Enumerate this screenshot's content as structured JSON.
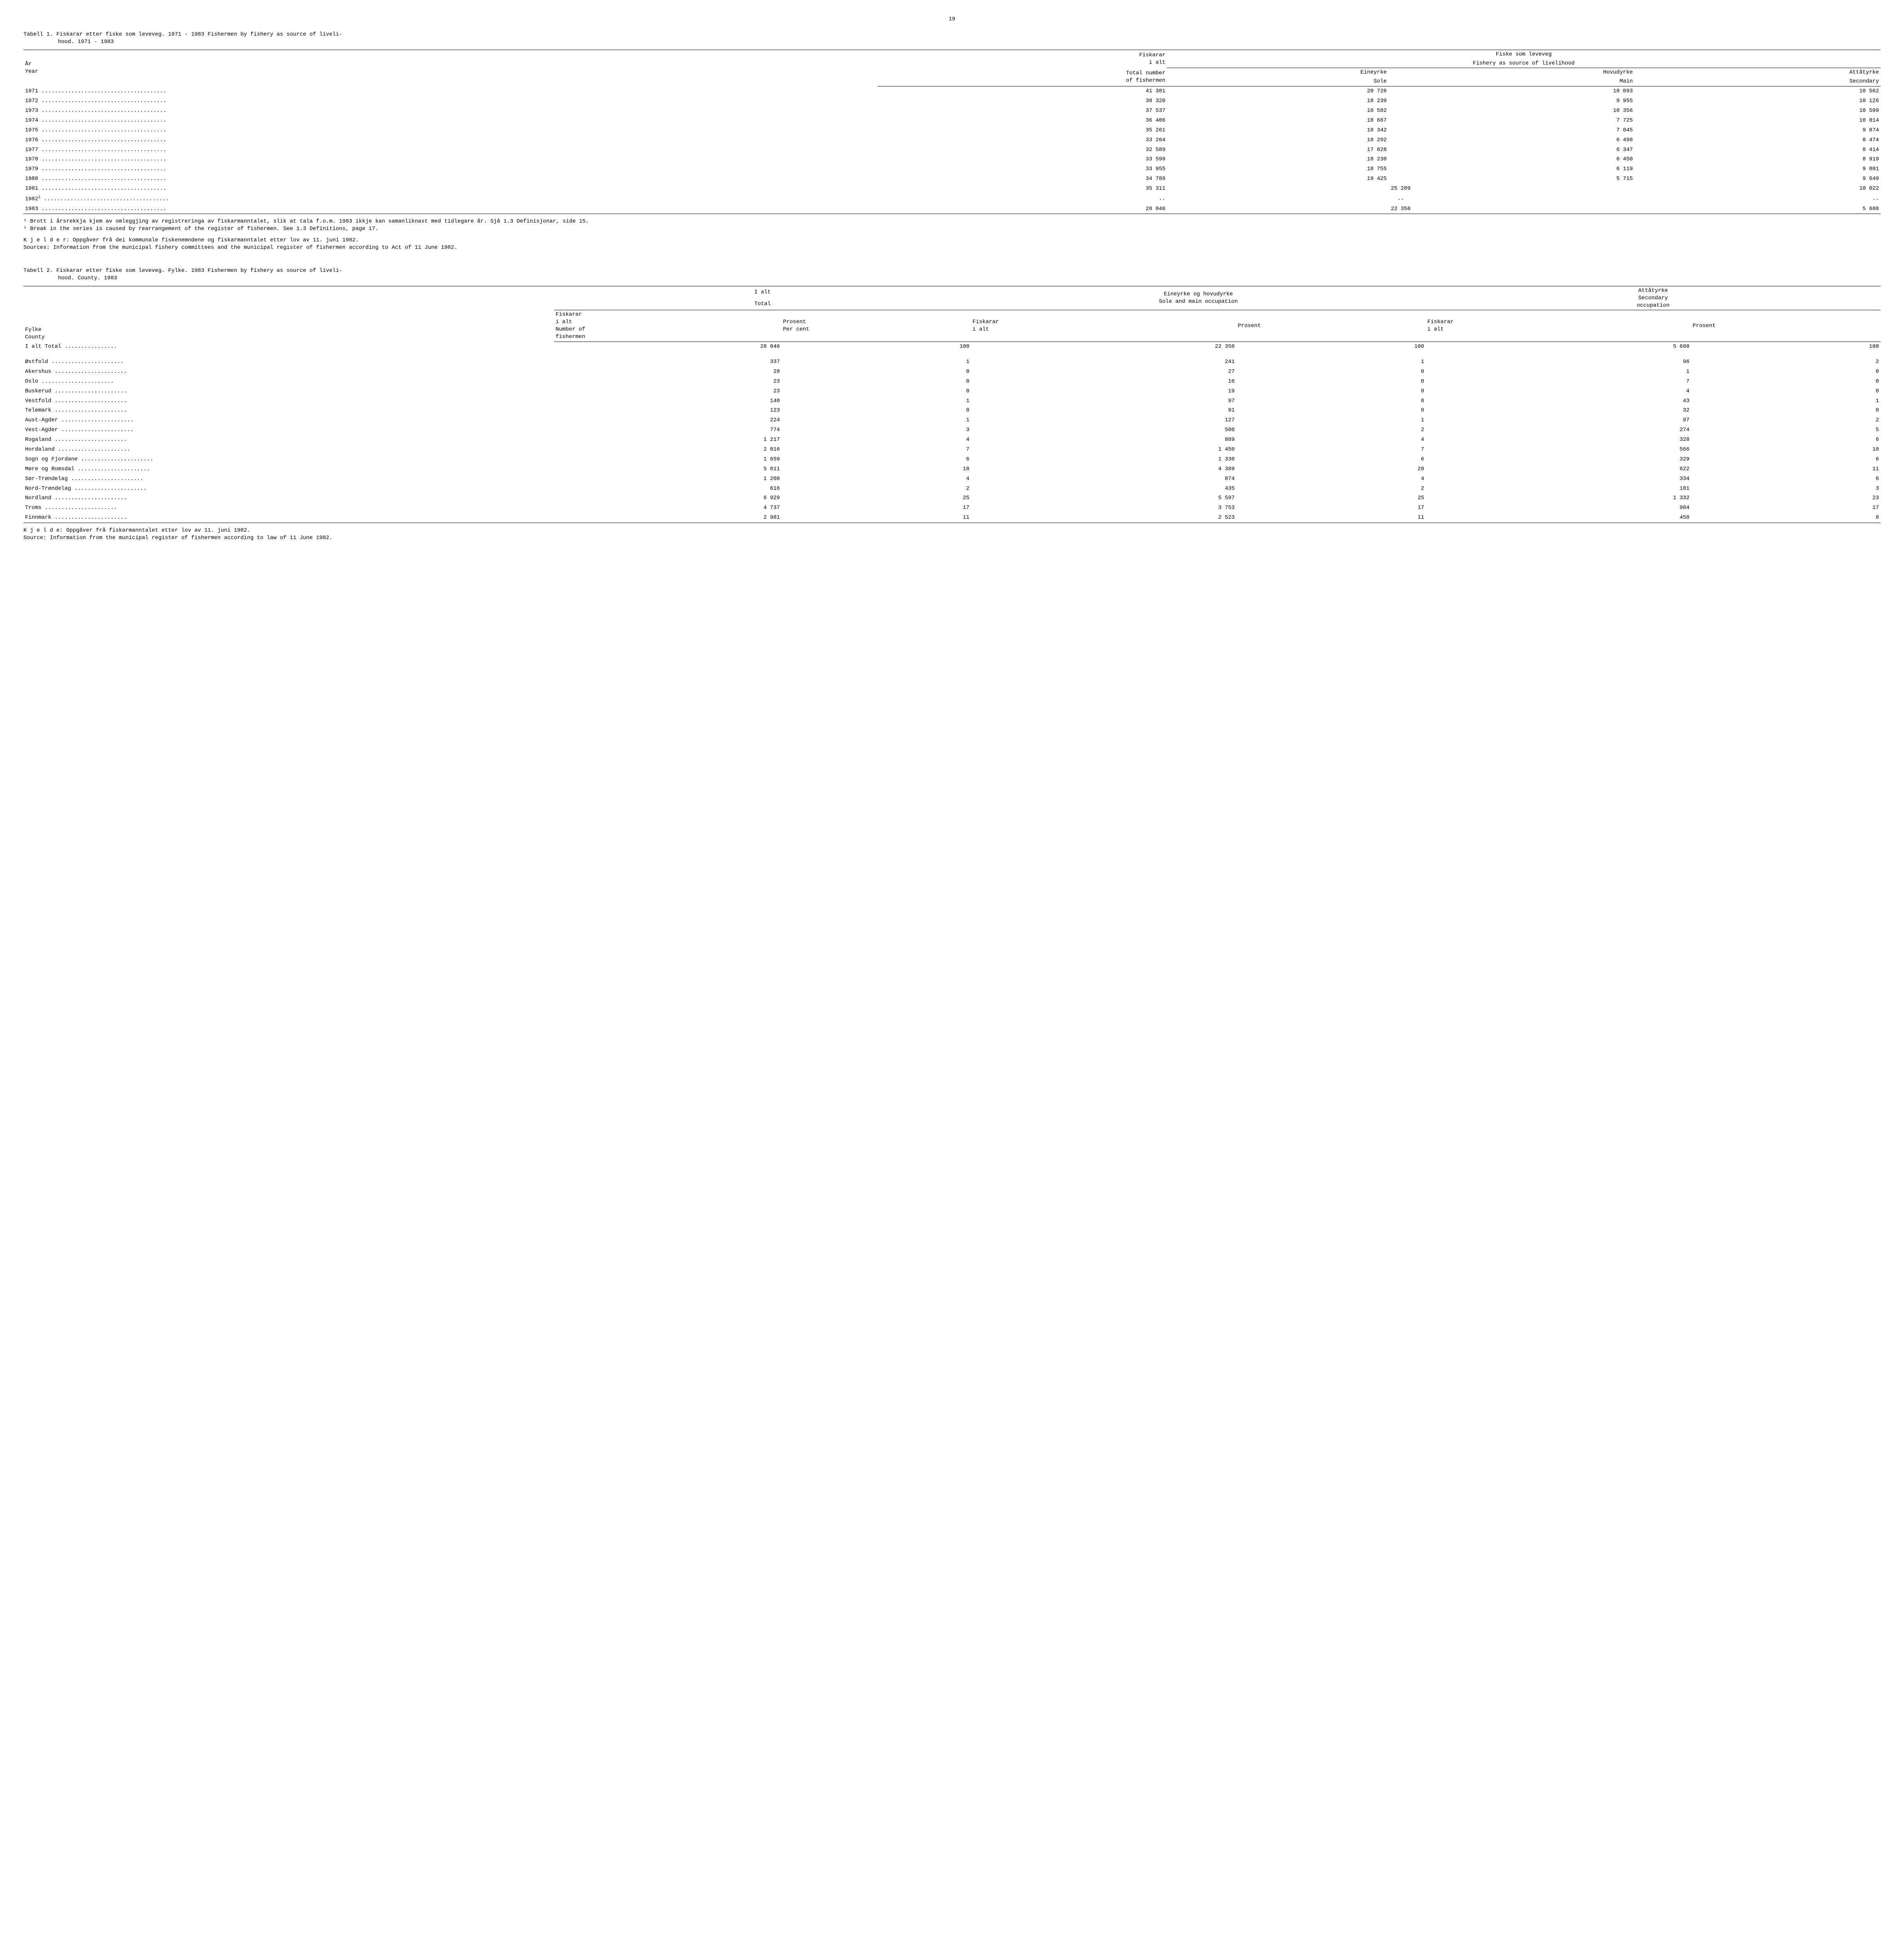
{
  "page_number": "19",
  "table1": {
    "title_line1": "Tabell 1.  Fiskarar etter fiske som leveveg.  1971 - 1983   Fishermen by fishery as source of liveli-",
    "title_line2": "hood.  1971 - 1983",
    "col_year_no": "År",
    "col_year_en": "Year",
    "col_total_no": "Fiskarar",
    "col_total_no2": "i alt",
    "col_total_en": "Total number",
    "col_total_en2": "of fishermen",
    "col_group_no": "Fiske som leveveg",
    "col_group_en": "Fishery as source of livelihood",
    "col_sole_no": "Eineyrke",
    "col_sole_en": "Sole",
    "col_main_no": "Hovudyrke",
    "col_main_en": "Main",
    "col_sec_no": "Attåtyrke",
    "col_sec_en": "Secondary",
    "rows": [
      {
        "y": "1971",
        "t": "41 381",
        "s": "20 726",
        "m": "10 093",
        "sc": "10 562"
      },
      {
        "y": "1972",
        "t": "38 320",
        "s": "18 239",
        "m": "9 955",
        "sc": "10 126"
      },
      {
        "y": "1973",
        "t": "37 537",
        "s": "16 582",
        "m": "10 356",
        "sc": "10 599"
      },
      {
        "y": "1974",
        "t": "36 406",
        "s": "18 667",
        "m": "7 725",
        "sc": "10 014"
      },
      {
        "y": "1975",
        "t": "35 261",
        "s": "18 342",
        "m": "7 045",
        "sc": "9 874"
      },
      {
        "y": "1976",
        "t": "33 264",
        "s": "18 292",
        "m": "6 498",
        "sc": "8 474"
      },
      {
        "y": "1977",
        "t": "32 589",
        "s": "17 828",
        "m": "6 347",
        "sc": "8 414"
      },
      {
        "y": "1978",
        "t": "33 599",
        "s": "18 230",
        "m": "6 450",
        "sc": "8 919"
      },
      {
        "y": "1979",
        "t": "33 955",
        "s": "18 755",
        "m": "6 119",
        "sc": "9 081"
      },
      {
        "y": "1980",
        "t": "34 789",
        "s": "19 425",
        "m": "5 715",
        "sc": "9 649"
      }
    ],
    "row_1981": {
      "y": "1981",
      "t": "35 311",
      "sm": "25 289",
      "sc": "10 022"
    },
    "row_1982": {
      "y": "1982",
      "sup": "1",
      "t": "..",
      "sm": "..",
      "sc": ".."
    },
    "row_1983": {
      "y": "1983",
      "t": "28 046",
      "sm": "22 358",
      "sc": "5 688"
    },
    "footnote1_no": "¹ Brott i årsrekkja kjem av omleggjing av registreringa av fiskarmanntalet, slik at tala f.o.m. 1983 ikkje kan samanliknast med tidlegare år.  Sjå 1.3 Definisjonar, side 15.",
    "footnote1_en": "¹ Break in the series is caused by rearrangement of the register of fishermen.  See 1.3 Definitions, page 17.",
    "source_no": "K j e l d e r: Oppgåver frå dei kommunale fiskenemndene og fiskarmanntalet etter lov av 11. juni 1982.",
    "source_en": "Sources: Information from the municipal fishery committees and the municipal register of fishermen according to Act of 11 June 1982."
  },
  "table2": {
    "title_line1": "Tabell 2.  Fiskarar etter fiske som leveveg.  Fylke.  1983   Fishermen by fishery as source of liveli-",
    "title_line2": "hood.  County.  1983",
    "col_county_no": "Fylke",
    "col_county_en": "County",
    "col_total_no": "I alt",
    "col_total_en": "Total",
    "col_fish_no": "Fiskarar",
    "col_fish_no2": "i alt",
    "col_fish_en": "Number of",
    "col_fish_en2": "fishermen",
    "col_pct_no": "Prosent",
    "col_pct_en": "Per cent",
    "col_solemain_no": "Eineyrke og hovudyrke",
    "col_solemain_en": "Sole and main occupation",
    "col_sec_no": "Attåtyrke",
    "col_sec_en1": "Secondary",
    "col_sec_en2": "occupation",
    "col_fish2_no": "Fiskarar",
    "col_fish2_no2": "i alt",
    "col_pct2": "Prosent",
    "total_row": {
      "label": "I alt   Total",
      "n1": "28 046",
      "p1": "100",
      "n2": "22 358",
      "p2": "100",
      "n3": "5 688",
      "p3": "100"
    },
    "rows": [
      {
        "c": "Østfold",
        "n1": "337",
        "p1": "1",
        "n2": "241",
        "p2": "1",
        "n3": "96",
        "p3": "2"
      },
      {
        "c": "Akershus",
        "n1": "28",
        "p1": "0",
        "n2": "27",
        "p2": "0",
        "n3": "1",
        "p3": "0"
      },
      {
        "c": "Oslo",
        "n1": "23",
        "p1": "0",
        "n2": "16",
        "p2": "0",
        "n3": "7",
        "p3": "0"
      },
      {
        "c": "Buskerud",
        "n1": "23",
        "p1": "0",
        "n2": "19",
        "p2": "0",
        "n3": "4",
        "p3": "0"
      },
      {
        "c": "Vestfold",
        "n1": "140",
        "p1": "1",
        "n2": "97",
        "p2": "0",
        "n3": "43",
        "p3": "1"
      },
      {
        "c": "Telemark",
        "n1": "123",
        "p1": "0",
        "n2": "91",
        "p2": "0",
        "n3": "32",
        "p3": "0"
      },
      {
        "c": "Aust-Agder",
        "n1": "224",
        "p1": "1",
        "n2": "127",
        "p2": "1",
        "n3": "97",
        "p3": "2"
      },
      {
        "c": "Vest-Agder",
        "n1": "774",
        "p1": "3",
        "n2": "500",
        "p2": "2",
        "n3": "274",
        "p3": "5"
      },
      {
        "c": "Rogaland",
        "n1": "1 217",
        "p1": "4",
        "n2": "889",
        "p2": "4",
        "n3": "328",
        "p3": "6"
      },
      {
        "c": "Hordaland",
        "n1": "2 016",
        "p1": "7",
        "n2": "1 450",
        "p2": "7",
        "n3": "566",
        "p3": "10"
      },
      {
        "c": "Sogn og Fjordane",
        "n1": "1 659",
        "p1": "6",
        "n2": "1 330",
        "p2": "6",
        "n3": "329",
        "p3": "6"
      },
      {
        "c": "Møre og Romsdal",
        "n1": "5 011",
        "p1": "18",
        "n2": "4 389",
        "p2": "20",
        "n3": "622",
        "p3": "11"
      },
      {
        "c": "Sør-Trøndelag",
        "n1": "1 208",
        "p1": "4",
        "n2": "874",
        "p2": "4",
        "n3": "334",
        "p3": "6"
      },
      {
        "c": "Nord-Trøndelag",
        "n1": "616",
        "p1": "2",
        "n2": "435",
        "p2": "2",
        "n3": "181",
        "p3": "3"
      },
      {
        "c": "Nordland",
        "n1": "6 929",
        "p1": "25",
        "n2": "5 597",
        "p2": "25",
        "n3": "1 332",
        "p3": "23"
      },
      {
        "c": "Troms",
        "n1": "4 737",
        "p1": "17",
        "n2": "3 753",
        "p2": "17",
        "n3": "984",
        "p3": "17"
      },
      {
        "c": "Finnmark",
        "n1": "2 981",
        "p1": "11",
        "n2": "2 523",
        "p2": "11",
        "n3": "458",
        "p3": "8"
      }
    ],
    "source_no": "K j e l d e: Oppgåver frå fiskarmanntalet etter lov av 11. juni 1982.",
    "source_en": "Source: Information from the municipal register of fishermen according to law of 11 June 1982."
  }
}
